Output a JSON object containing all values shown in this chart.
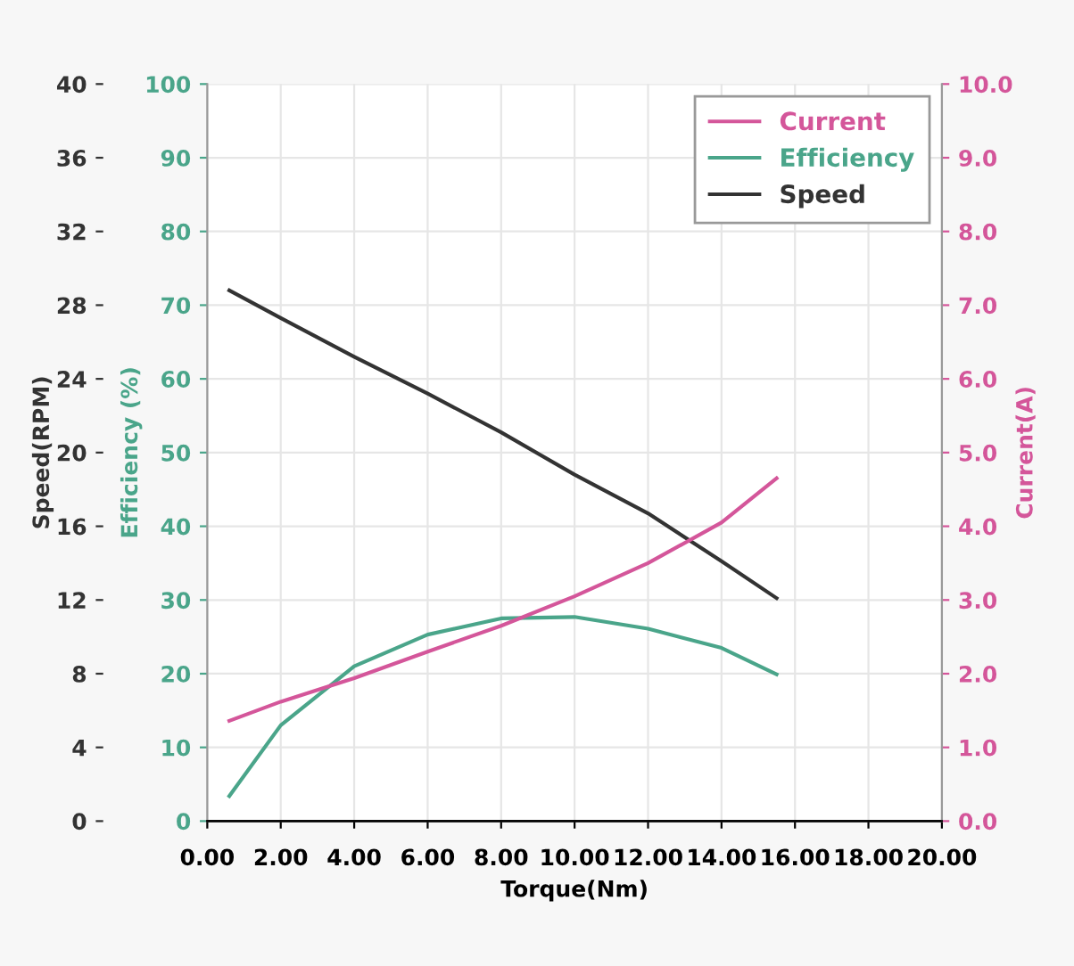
{
  "chart_data": {
    "type": "line",
    "xlabel": "Torque(Nm)",
    "ylabel": "Speed(RPM)",
    "y2label": "Current(A)",
    "y3label": "Efficiency (%)",
    "x": [
      0.6,
      2,
      4,
      6,
      8,
      10,
      12,
      14,
      15.5
    ],
    "series": [
      {
        "name": "Current",
        "color": "#d4569a",
        "axis": "y2",
        "values": [
          1.36,
          1.62,
          1.94,
          2.3,
          2.65,
          3.05,
          3.5,
          4.05,
          4.65
        ]
      },
      {
        "name": "Efficiency",
        "color": "#4aa58a",
        "axis": "y3",
        "values": [
          3.4,
          13,
          21,
          25.3,
          27.5,
          27.7,
          26.1,
          23.5,
          19.9
        ]
      },
      {
        "name": "Speed",
        "color": "#333333",
        "axis": "y",
        "values": [
          28.8,
          27.3,
          25.2,
          23.2,
          21.1,
          18.8,
          16.7,
          14.1,
          12.1
        ]
      }
    ],
    "xlim": [
      0,
      20
    ],
    "xticks": [
      {
        "value": 0,
        "label": "0.00"
      },
      {
        "value": 2,
        "label": "2.00"
      },
      {
        "value": 4,
        "label": "4.00"
      },
      {
        "value": 6,
        "label": "6.00"
      },
      {
        "value": 8,
        "label": "8.00"
      },
      {
        "value": 10,
        "label": "10.00"
      },
      {
        "value": 12,
        "label": "12.00"
      },
      {
        "value": 14,
        "label": "14.00"
      },
      {
        "value": 16,
        "label": "16.00"
      },
      {
        "value": 18,
        "label": "18.00"
      },
      {
        "value": 20,
        "label": "20.00"
      }
    ],
    "ylim": [
      0,
      40
    ],
    "yticks": [
      0,
      4,
      8,
      12,
      16,
      20,
      24,
      28,
      32,
      36,
      40
    ],
    "y3lim": [
      0,
      100
    ],
    "y3ticks": [
      0,
      10,
      20,
      30,
      40,
      50,
      60,
      70,
      80,
      90,
      100
    ],
    "y2lim": [
      0,
      10
    ],
    "y2ticks": [
      {
        "value": 0,
        "label": "0.0"
      },
      {
        "value": 1,
        "label": "1.0"
      },
      {
        "value": 2,
        "label": "2.0"
      },
      {
        "value": 3,
        "label": "3.0"
      },
      {
        "value": 4,
        "label": "4.0"
      },
      {
        "value": 5,
        "label": "5.0"
      },
      {
        "value": 6,
        "label": "6.0"
      },
      {
        "value": 7,
        "label": "7.0"
      },
      {
        "value": 8,
        "label": "8.0"
      },
      {
        "value": 9,
        "label": "9.0"
      },
      {
        "value": 10,
        "label": "10.0"
      }
    ],
    "grid": true,
    "legend": "top right",
    "marker": "none",
    "line_style": "solid"
  }
}
